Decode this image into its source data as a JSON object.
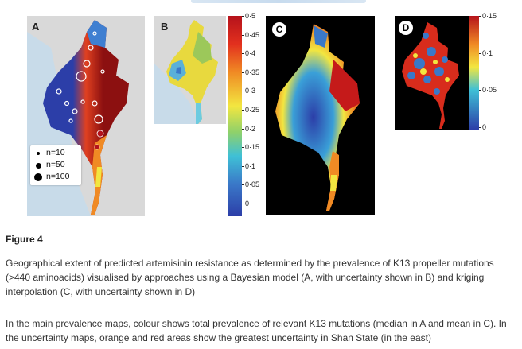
{
  "figure": {
    "label": "Figure 4",
    "caption_paragraph_1": "Geographical extent of predicted artemisinin resistance as determined by the prevalence of K13 propeller mutations (>440 aminoacids) visualised by approaches using a Bayesian model (A, with uncertainty shown in B) and kriging interpolation (C, with uncertainty shown in D)",
    "caption_paragraph_2": "In the main prevalence maps, colour shows total prevalence of relevant K13 mutations (median in A and mean in C). In the uncertainty maps, orange and red areas show the greatest uncertainty in Shan State (in the east)"
  },
  "panels": {
    "a": {
      "letter": "A"
    },
    "b": {
      "letter": "B"
    },
    "c": {
      "letter": "C"
    },
    "d": {
      "letter": "D"
    }
  },
  "size_legend": [
    {
      "label": "n=10"
    },
    {
      "label": "n=50"
    },
    {
      "label": "n=100"
    }
  ],
  "scale_main": {
    "ticks": [
      "0·5",
      "0·45",
      "0·4",
      "0·35",
      "0·3",
      "0·25",
      "0·2",
      "0·15",
      "0·1",
      "0·05",
      "0"
    ]
  },
  "scale_d": {
    "ticks": [
      "0·15",
      "0·1",
      "0·05",
      "0"
    ]
  },
  "colors": {
    "low": "#2c3ea8",
    "mid_low": "#3aa0d8",
    "mid": "#f2e640",
    "mid_high": "#f08a24",
    "high": "#b5121b",
    "sea": "#c8dbe9",
    "land_grey": "#d9d9d9"
  }
}
